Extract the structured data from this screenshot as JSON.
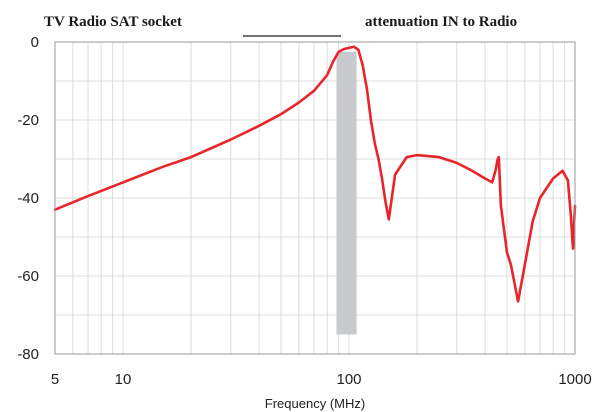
{
  "chart_data": {
    "type": "line",
    "title_left": "TV Radio SAT socket",
    "title_right": "attenuation IN to Radio",
    "xlabel": "Frequency (MHz)",
    "ylabel": "",
    "x_scale": "log",
    "xlim": [
      5,
      1000
    ],
    "ylim": [
      -80,
      0
    ],
    "x_ticks": [
      5,
      10,
      100,
      1000
    ],
    "x_tick_labels": [
      "5",
      "10",
      "100",
      "1000"
    ],
    "y_ticks": [
      0,
      -20,
      -40,
      -60,
      -80
    ],
    "y_tick_labels": [
      "0",
      "-20",
      "-40",
      "-60",
      "-80"
    ],
    "grid": true,
    "legend": "none",
    "series": [
      {
        "color": "#e8252a",
        "x": [
          5,
          7,
          10,
          15,
          20,
          30,
          40,
          50,
          60,
          70,
          80,
          85,
          90,
          95,
          100,
          105,
          110,
          115,
          120,
          125,
          130,
          135,
          140,
          145,
          150,
          160,
          180,
          200,
          250,
          300,
          350,
          400,
          430,
          445,
          455,
          460,
          470,
          500,
          520,
          545,
          560,
          600,
          650,
          700,
          800,
          880,
          930,
          960,
          980,
          1000
        ],
        "y": [
          -43,
          -39.5,
          -36,
          -32,
          -29.5,
          -25,
          -21.5,
          -18.5,
          -15.5,
          -12.5,
          -8.5,
          -5,
          -2.5,
          -1.8,
          -1.5,
          -1.2,
          -2,
          -6,
          -12,
          -20,
          -26,
          -30,
          -35,
          -41,
          -45.5,
          -34,
          -29.5,
          -29,
          -29.5,
          -31,
          -33,
          -35,
          -36,
          -33,
          -30,
          -29.5,
          -42,
          -54,
          -57,
          -63,
          -66.5,
          -57,
          -46,
          -40,
          -35,
          -33,
          -35.5,
          -45,
          -53,
          -42
        ]
      }
    ],
    "band": {
      "x_from": 88,
      "x_to": 108,
      "y_from": -75,
      "y_to": -2.5,
      "color": "#c8cacd"
    }
  }
}
